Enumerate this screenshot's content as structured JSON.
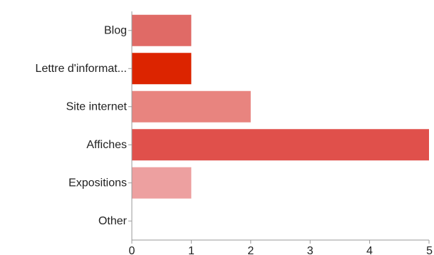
{
  "chart_data": {
    "type": "bar",
    "orientation": "horizontal",
    "categories": [
      "Blog",
      "Lettre d'informat...",
      "Site internet",
      "Affiches",
      "Expositions",
      "Other"
    ],
    "values": [
      1,
      1,
      2,
      5,
      1,
      0
    ],
    "colors": [
      "#e06a66",
      "#dc2400",
      "#e8847f",
      "#e0504b",
      "#eda0a0",
      "#eda0a0"
    ],
    "xlim": [
      0,
      5
    ],
    "xticks": [
      0,
      1,
      2,
      3,
      4,
      5
    ],
    "grid": false,
    "legend": "none",
    "axis_color": "#999999",
    "text_color": "#222222"
  }
}
